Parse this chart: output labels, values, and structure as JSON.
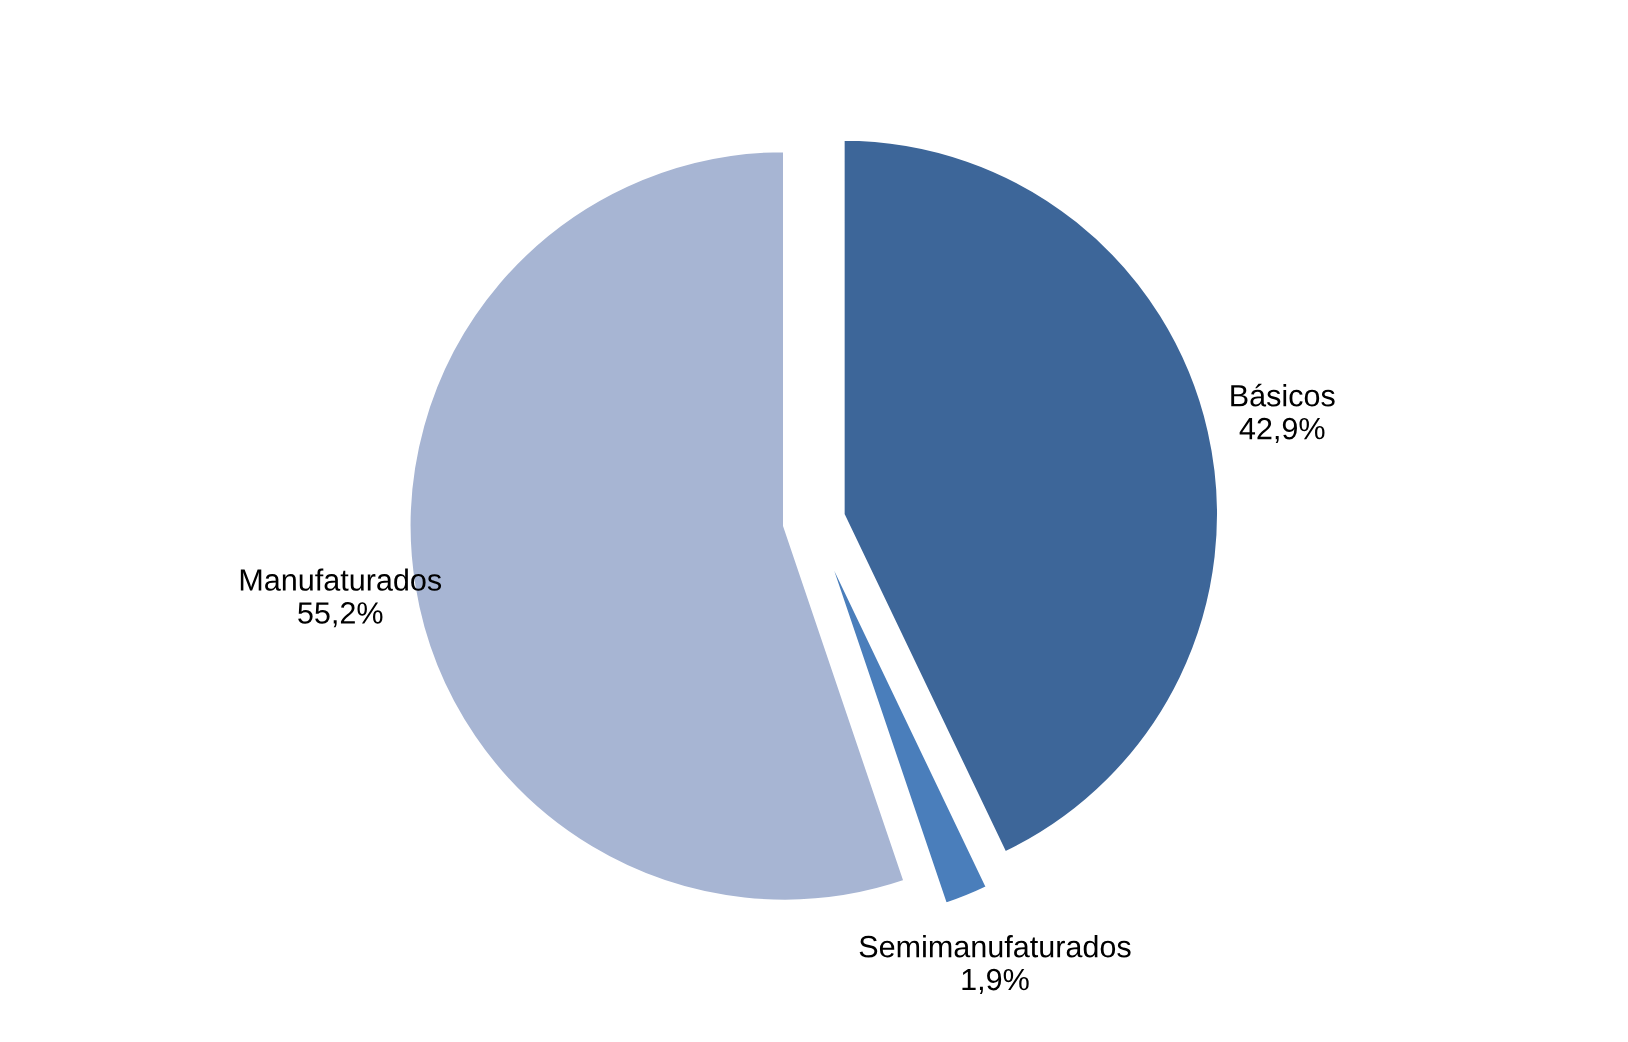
{
  "chart_data": {
    "type": "pie",
    "categories": [
      "Básicos",
      "Semimanufaturados",
      "Manufaturados"
    ],
    "values": [
      42.9,
      1.9,
      55.2
    ],
    "value_labels": [
      "42,9%",
      "1,9%",
      "55,2%"
    ],
    "colors": [
      "#3d6699",
      "#4a7ebb",
      "#a7b5d3"
    ],
    "legend": false
  }
}
